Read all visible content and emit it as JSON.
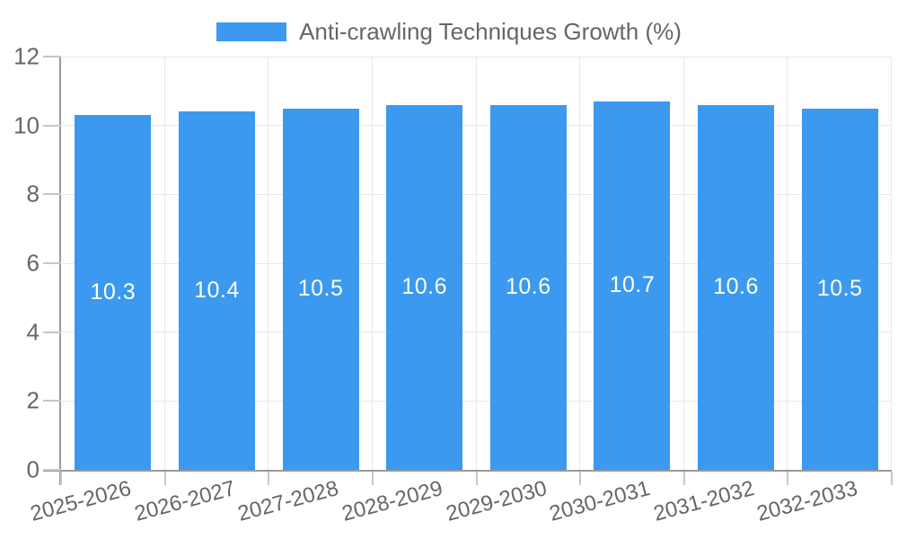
{
  "legend": {
    "label": "Anti-crawling Techniques Growth (%)"
  },
  "chart_data": {
    "type": "bar",
    "title": "Anti-crawling Techniques Growth (%)",
    "categories": [
      "2025-2026",
      "2026-2027",
      "2027-2028",
      "2028-2029",
      "2029-2030",
      "2030-2031",
      "2031-2032",
      "2032-2033"
    ],
    "values": [
      10.3,
      10.4,
      10.5,
      10.6,
      10.6,
      10.7,
      10.6,
      10.5
    ],
    "value_labels": [
      "10.3",
      "10.4",
      "10.5",
      "10.6",
      "10.6",
      "10.7",
      "10.6",
      "10.5"
    ],
    "xlabel": "",
    "ylabel": "",
    "ylim": [
      0,
      12
    ],
    "yticks": [
      0,
      2,
      4,
      6,
      8,
      10,
      12
    ],
    "grid": true,
    "legend_position": "top",
    "x_tick_rotation": -15
  },
  "colors": {
    "bar": "#3b99ef",
    "value_label": "#ffffff",
    "axis_line": "#9a9a9a",
    "tick_mark": "#c6c6c6",
    "gridline": "#e8e8e8",
    "axis_label": "#666666",
    "background": "#ffffff"
  }
}
